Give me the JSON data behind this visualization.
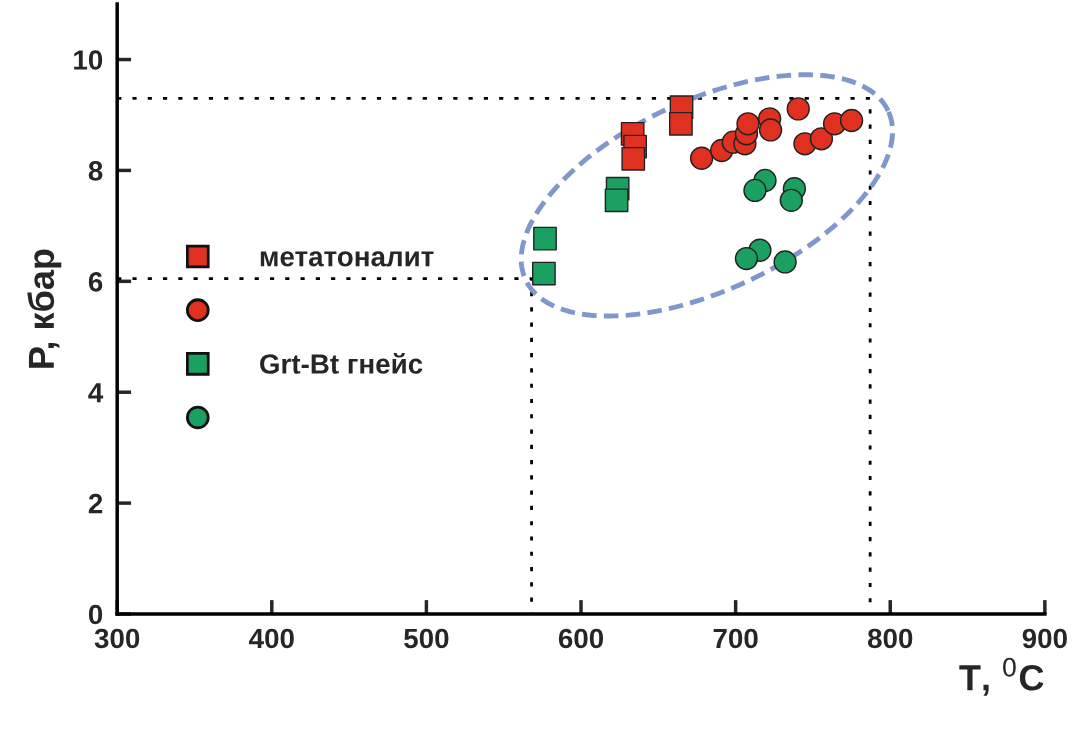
{
  "chart_data": {
    "type": "scatter",
    "xlabel": "T, $^{0}$C",
    "ylabel": "P, кбар",
    "xlim": [
      300,
      900
    ],
    "xticks": [
      300,
      400,
      500,
      600,
      700,
      800,
      900
    ],
    "ylim": [
      0,
      11
    ],
    "yticks": [
      0,
      2,
      4,
      6,
      8,
      10
    ],
    "grid": false,
    "legend": "left",
    "series": [
      {
        "name": "метатоналит",
        "marker": "square",
        "color": "#e03020",
        "x": [
          665,
          664.6,
          633.4,
          635,
          633.8
        ],
        "values": [
          9.14,
          8.84,
          8.66,
          8.43,
          8.21
        ]
      },
      {
        "marker": "circle",
        "color": "#e03020",
        "x": [
          678,
          691,
          698.5,
          706,
          707,
          708,
          722,
          722.6,
          740.5,
          744.8,
          755.5,
          764,
          775
        ],
        "values": [
          8.22,
          8.36,
          8.51,
          8.48,
          8.66,
          8.84,
          8.93,
          8.73,
          9.11,
          8.48,
          8.57,
          8.84,
          8.9
        ]
      },
      {
        "name": "Grt-Bt гнейс",
        "marker": "square",
        "color": "#1aa060",
        "x": [
          623.7,
          623,
          576.7,
          576
        ],
        "values": [
          7.67,
          7.46,
          6.77,
          6.14
        ]
      },
      {
        "marker": "circle",
        "color": "#1aa060",
        "x": [
          719,
          712.5,
          738,
          736,
          715.7,
          707,
          732
        ],
        "values": [
          7.82,
          7.64,
          7.67,
          7.46,
          6.56,
          6.41,
          6.35
        ]
      },
      {
        "type": "line",
        "line_style": "dotted",
        "color": "#000000",
        "x": [
          300,
          568,
          568
        ],
        "values": [
          6.05,
          6.05,
          0
        ]
      },
      {
        "type": "line",
        "line_style": "dotted",
        "color": "#000000",
        "x": [
          300,
          787,
          787
        ],
        "values": [
          9.3,
          9.3,
          0
        ]
      }
    ]
  }
}
